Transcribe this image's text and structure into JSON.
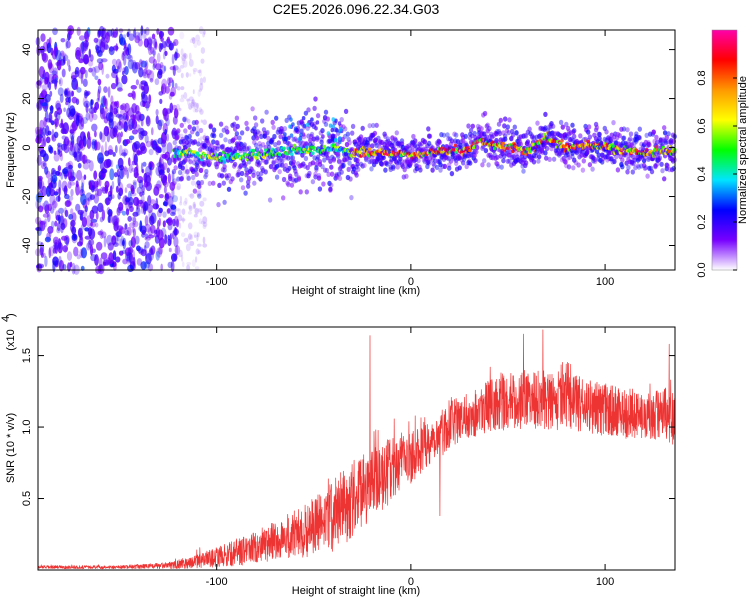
{
  "title": "C2E5.2026.096.22.34.G03",
  "chart_data": [
    {
      "type": "heatmap",
      "name": "spectrogram",
      "xlabel": "Height of straight line (km)",
      "ylabel": "Frequency (Hz)",
      "xlim": [
        -192,
        136
      ],
      "ylim": [
        -50,
        48
      ],
      "xticks": [
        -100,
        0,
        100
      ],
      "xtick_labels": [
        "-100",
        "0",
        "100"
      ],
      "yticks": [
        -40,
        -20,
        0,
        20,
        40
      ],
      "ytick_labels": [
        "-40",
        "-20",
        "0",
        "20",
        "40"
      ],
      "colorbar": {
        "label": "Normalized spectral amplitude",
        "range": [
          0.0,
          1.0
        ],
        "ticks": [
          0.0,
          0.2,
          0.4,
          0.6,
          0.8
        ],
        "tick_labels": [
          "0.0",
          "0.2",
          "0.4",
          "0.6",
          "0.8"
        ],
        "colormap": [
          "#ffffff",
          "#7700ff",
          "#0000ff",
          "#00e5ff",
          "#00ff00",
          "#ffff00",
          "#ff9900",
          "#ff0000",
          "#ff00aa"
        ]
      },
      "features": {
        "noise_region_x": [
          -192,
          -120
        ],
        "signal_start_x": -122,
        "ridge_x": [
          -120,
          -110,
          -100,
          -90,
          -80,
          -70,
          -60,
          -50,
          -40,
          -30,
          -20,
          -10,
          0,
          10,
          20,
          30,
          35,
          40,
          50,
          60,
          65,
          70,
          80,
          90,
          100,
          110,
          120,
          136
        ],
        "ridge_freq": [
          -2,
          -3,
          -4,
          -4,
          -3,
          -2,
          -1,
          -1,
          0,
          -2,
          -2,
          -2,
          -3,
          -2,
          -1,
          -1,
          3,
          2,
          0,
          -1,
          1,
          4,
          0,
          1,
          0,
          -1,
          -2,
          -1
        ]
      }
    },
    {
      "type": "line",
      "name": "snr",
      "xlabel": "Height of straight line (km)",
      "ylabel": "SNR (10 * v/v)",
      "scale_label": "(x10",
      "scale_exponent": "4",
      "xlim": [
        -192,
        136
      ],
      "ylim": [
        0,
        1.7
      ],
      "xticks": [
        -100,
        0,
        100
      ],
      "xtick_labels": [
        "-100",
        "0",
        "100"
      ],
      "yticks": [
        0.5,
        1.0,
        1.5
      ],
      "ytick_labels": [
        "0.5",
        "1.0",
        "1.5"
      ],
      "color": "#ee3333",
      "envelope_x": [
        -192,
        -150,
        -125,
        -110,
        -90,
        -70,
        -50,
        -40,
        -30,
        -20,
        -10,
        0,
        10,
        15,
        20,
        30,
        40,
        60,
        80,
        100,
        120,
        136
      ],
      "envelope_mean": [
        0.02,
        0.02,
        0.03,
        0.06,
        0.12,
        0.2,
        0.3,
        0.38,
        0.5,
        0.6,
        0.7,
        0.8,
        0.9,
        0.95,
        1.02,
        1.08,
        1.15,
        1.2,
        1.18,
        1.12,
        1.08,
        1.08
      ],
      "envelope_spread": [
        0.01,
        0.01,
        0.02,
        0.04,
        0.08,
        0.12,
        0.18,
        0.22,
        0.24,
        0.22,
        0.2,
        0.17,
        0.14,
        0.15,
        0.14,
        0.14,
        0.16,
        0.18,
        0.18,
        0.16,
        0.15,
        0.18
      ],
      "spikes": [
        {
          "x": -21,
          "y": 1.64
        },
        {
          "x": -18,
          "y": 0.98
        },
        {
          "x": 15,
          "y": 0.38
        },
        {
          "x": 68,
          "y": 1.68
        },
        {
          "x": 58,
          "y": 1.65
        },
        {
          "x": 133,
          "y": 1.58
        }
      ]
    }
  ]
}
